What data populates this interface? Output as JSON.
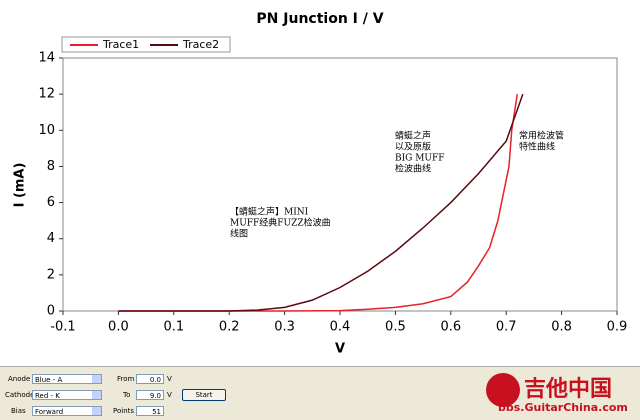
{
  "chart_data": {
    "type": "line",
    "title": "PN Junction I / V",
    "x_label": "V",
    "y_label": "I (mA)",
    "xlim": [
      -0.1,
      0.9
    ],
    "xticks": [
      -0.1,
      {
        "value": 0,
        "label": "0.0"
      },
      0.1,
      0.2,
      0.3,
      0.4,
      0.5,
      0.6,
      0.7,
      0.8,
      0.9
    ],
    "ylim": [
      0,
      14
    ],
    "yticks": [
      0,
      2,
      4,
      6,
      8,
      10,
      12,
      14
    ],
    "grid": false,
    "legend": "top-left",
    "series": [
      {
        "name": "Trace1",
        "color": "#e8202a",
        "x": [
          0,
          0.1,
          0.2,
          0.3,
          0.4,
          0.45,
          0.5,
          0.55,
          0.6,
          0.63,
          0.65,
          0.67,
          0.685,
          0.695,
          0.705,
          0.71,
          0.72
        ],
        "values": [
          0,
          0,
          0,
          0,
          0.02,
          0.1,
          0.2,
          0.4,
          0.8,
          1.6,
          2.5,
          3.5,
          5,
          6.5,
          8,
          10,
          12
        ]
      },
      {
        "name": "Trace2",
        "color": "#5a0a14",
        "x": [
          0,
          0.1,
          0.2,
          0.25,
          0.3,
          0.35,
          0.4,
          0.45,
          0.5,
          0.55,
          0.6,
          0.65,
          0.7,
          0.73
        ],
        "values": [
          0,
          0,
          0,
          0.05,
          0.2,
          0.6,
          1.3,
          2.2,
          3.3,
          4.6,
          6,
          7.6,
          9.4,
          12
        ]
      }
    ],
    "annotations": [
      {
        "lines": [
          "【蜻蜓之声】MINI",
          "MUFF经典FUZZ检波曲",
          "线图"
        ]
      },
      {
        "lines": [
          "蜻蜓之声",
          "以及原版",
          "BIG MUFF",
          "检波曲线"
        ]
      },
      {
        "lines": [
          "常用检波管",
          "特性曲线"
        ]
      }
    ]
  },
  "controls": {
    "anode_label": "Anode",
    "anode": "Blue - A",
    "cathode_label": "Cathode",
    "cathode": "Red - K",
    "bias_label": "Bias",
    "bias": "Forward",
    "from_label": "From",
    "from": "0.0",
    "to_label": "To",
    "to": "9.0",
    "unit": "V",
    "points_label": "Points",
    "points": "51",
    "start": "Start"
  },
  "logo": {
    "name": "吉他中国",
    "url": "bbs.GuitarChina.com"
  }
}
